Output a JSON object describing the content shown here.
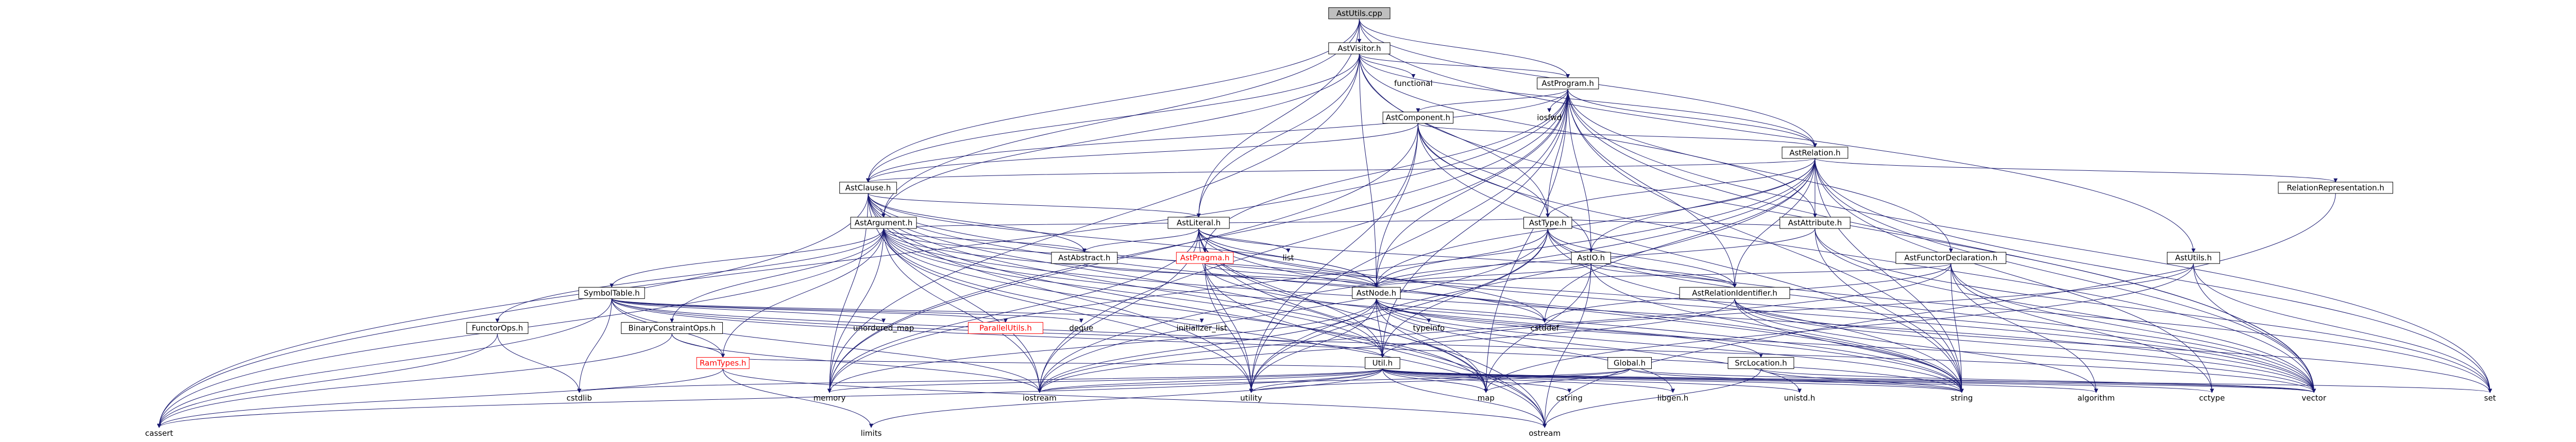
{
  "graph": {
    "root": "AstUtils.cpp",
    "edge_color": "#191970",
    "nodes": {
      "ast_utils_cpp": "AstUtils.cpp",
      "ast_visitor_h": "AstVisitor.h",
      "functional": "functional",
      "ast_program_h": "AstProgram.h",
      "iosfwd": "iosfwd",
      "ast_component_h": "AstComponent.h",
      "ast_relation_h": "AstRelation.h",
      "ast_clause_h": "AstClause.h",
      "ast_argument_h": "AstArgument.h",
      "ast_literal_h": "AstLiteral.h",
      "ast_attribute_h": "AstAttribute.h",
      "ast_type_h": "AstType.h",
      "ast_pragma_h": "AstPragma.h",
      "ast_io_h": "AstIO.h",
      "ast_functor_declaration_h": "AstFunctorDeclaration.h",
      "relation_representation_h": "RelationRepresentation.h",
      "ast_relation_identifier_h": "AstRelationIdentifier.h",
      "ast_abstract_h": "AstAbstract.h",
      "list": "list",
      "ast_node_h": "AstNode.h",
      "ast_utils_h": "AstUtils.h",
      "symbol_table_h": "SymbolTable.h",
      "functor_ops_h": "FunctorOps.h",
      "binary_constraint_ops_h": "BinaryConstraintOps.h",
      "parallel_utils_h": "ParallelUtils.h",
      "ram_types_h": "RamTypes.h",
      "unordered_map": "unordered_map",
      "deque": "deque",
      "initializer_list": "initializer_list",
      "typeinfo": "typeinfo",
      "util_h": "Util.h",
      "global_h": "Global.h",
      "src_location_h": "SrcLocation.h",
      "cstddef": "cstddef",
      "cstdlib": "cstdlib",
      "memory": "memory",
      "iostream": "iostream",
      "utility": "utility",
      "map": "map",
      "cstring": "cstring",
      "libgen_h": "libgen.h",
      "unistd_h": "unistd.h",
      "string": "string",
      "algorithm": "algorithm",
      "cctype": "cctype",
      "vector": "vector",
      "set": "set",
      "cassert": "cassert",
      "limits": "limits",
      "ostream": "ostream"
    }
  }
}
